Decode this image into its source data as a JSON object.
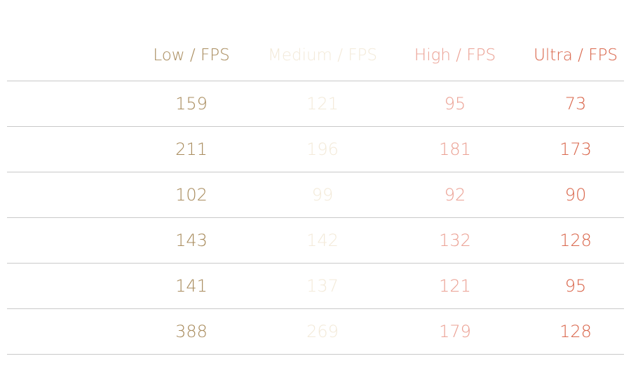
{
  "table": {
    "headers": [
      "Low / FPS",
      "Medium / FPS",
      "High / FPS",
      "Ultra / FPS"
    ],
    "rows": [
      [
        159,
        121,
        95,
        73
      ],
      [
        211,
        196,
        181,
        173
      ],
      [
        102,
        99,
        92,
        90
      ],
      [
        143,
        142,
        132,
        128
      ],
      [
        141,
        137,
        121,
        95
      ],
      [
        388,
        269,
        179,
        128
      ]
    ]
  }
}
